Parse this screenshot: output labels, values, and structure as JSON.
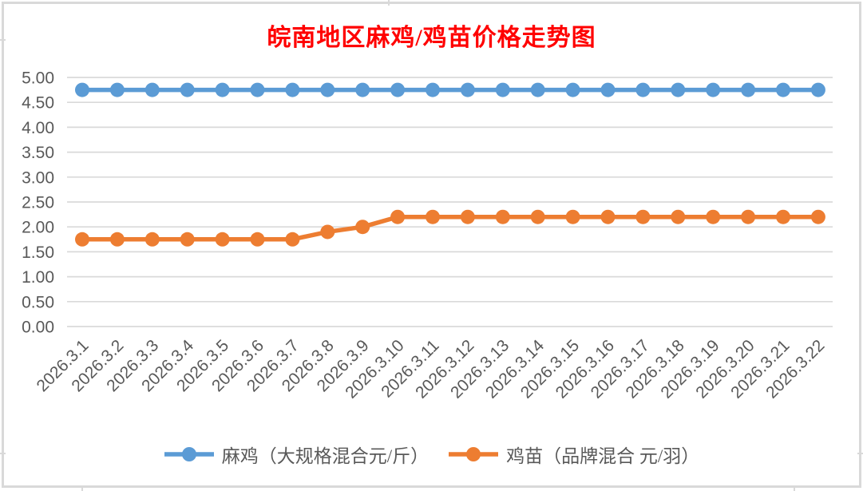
{
  "chart_data": {
    "type": "line",
    "title": "皖南地区麻鸡/鸡苗价格走势图",
    "title_color": "#FF0000",
    "categories": [
      "2026.3.1",
      "2026.3.2",
      "2026.3.3",
      "2026.3.4",
      "2026.3.5",
      "2026.3.6",
      "2026.3.7",
      "2026.3.8",
      "2026.3.9",
      "2026.3.10",
      "2026.3.11",
      "2026.3.12",
      "2026.3.13",
      "2026.3.14",
      "2026.3.15",
      "2026.3.16",
      "2026.3.17",
      "2026.3.18",
      "2026.3.19",
      "2026.3.20",
      "2026.3.21",
      "2026.3.22"
    ],
    "series": [
      {
        "name": "麻鸡（大规格混合元/斤）",
        "color": "#5B9BD5",
        "values": [
          4.75,
          4.75,
          4.75,
          4.75,
          4.75,
          4.75,
          4.75,
          4.75,
          4.75,
          4.75,
          4.75,
          4.75,
          4.75,
          4.75,
          4.75,
          4.75,
          4.75,
          4.75,
          4.75,
          4.75,
          4.75,
          4.75
        ]
      },
      {
        "name": "鸡苗（品牌混合 元/羽）",
        "color": "#ED7D31",
        "values": [
          1.75,
          1.75,
          1.75,
          1.75,
          1.75,
          1.75,
          1.75,
          1.9,
          2.0,
          2.2,
          2.2,
          2.2,
          2.2,
          2.2,
          2.2,
          2.2,
          2.2,
          2.2,
          2.2,
          2.2,
          2.2,
          2.2
        ]
      }
    ],
    "ylim": [
      0,
      5
    ],
    "ytick_step": 0.5,
    "ytick_labels": [
      "0.00",
      "0.50",
      "1.00",
      "1.50",
      "2.00",
      "2.50",
      "3.00",
      "3.50",
      "4.00",
      "4.50",
      "5.00"
    ],
    "grid": true,
    "gridline_color": "#D9D9D9",
    "axis_label_color": "#595959",
    "legend_position": "bottom",
    "legend_text_color": "#595959",
    "marker": "circle"
  }
}
